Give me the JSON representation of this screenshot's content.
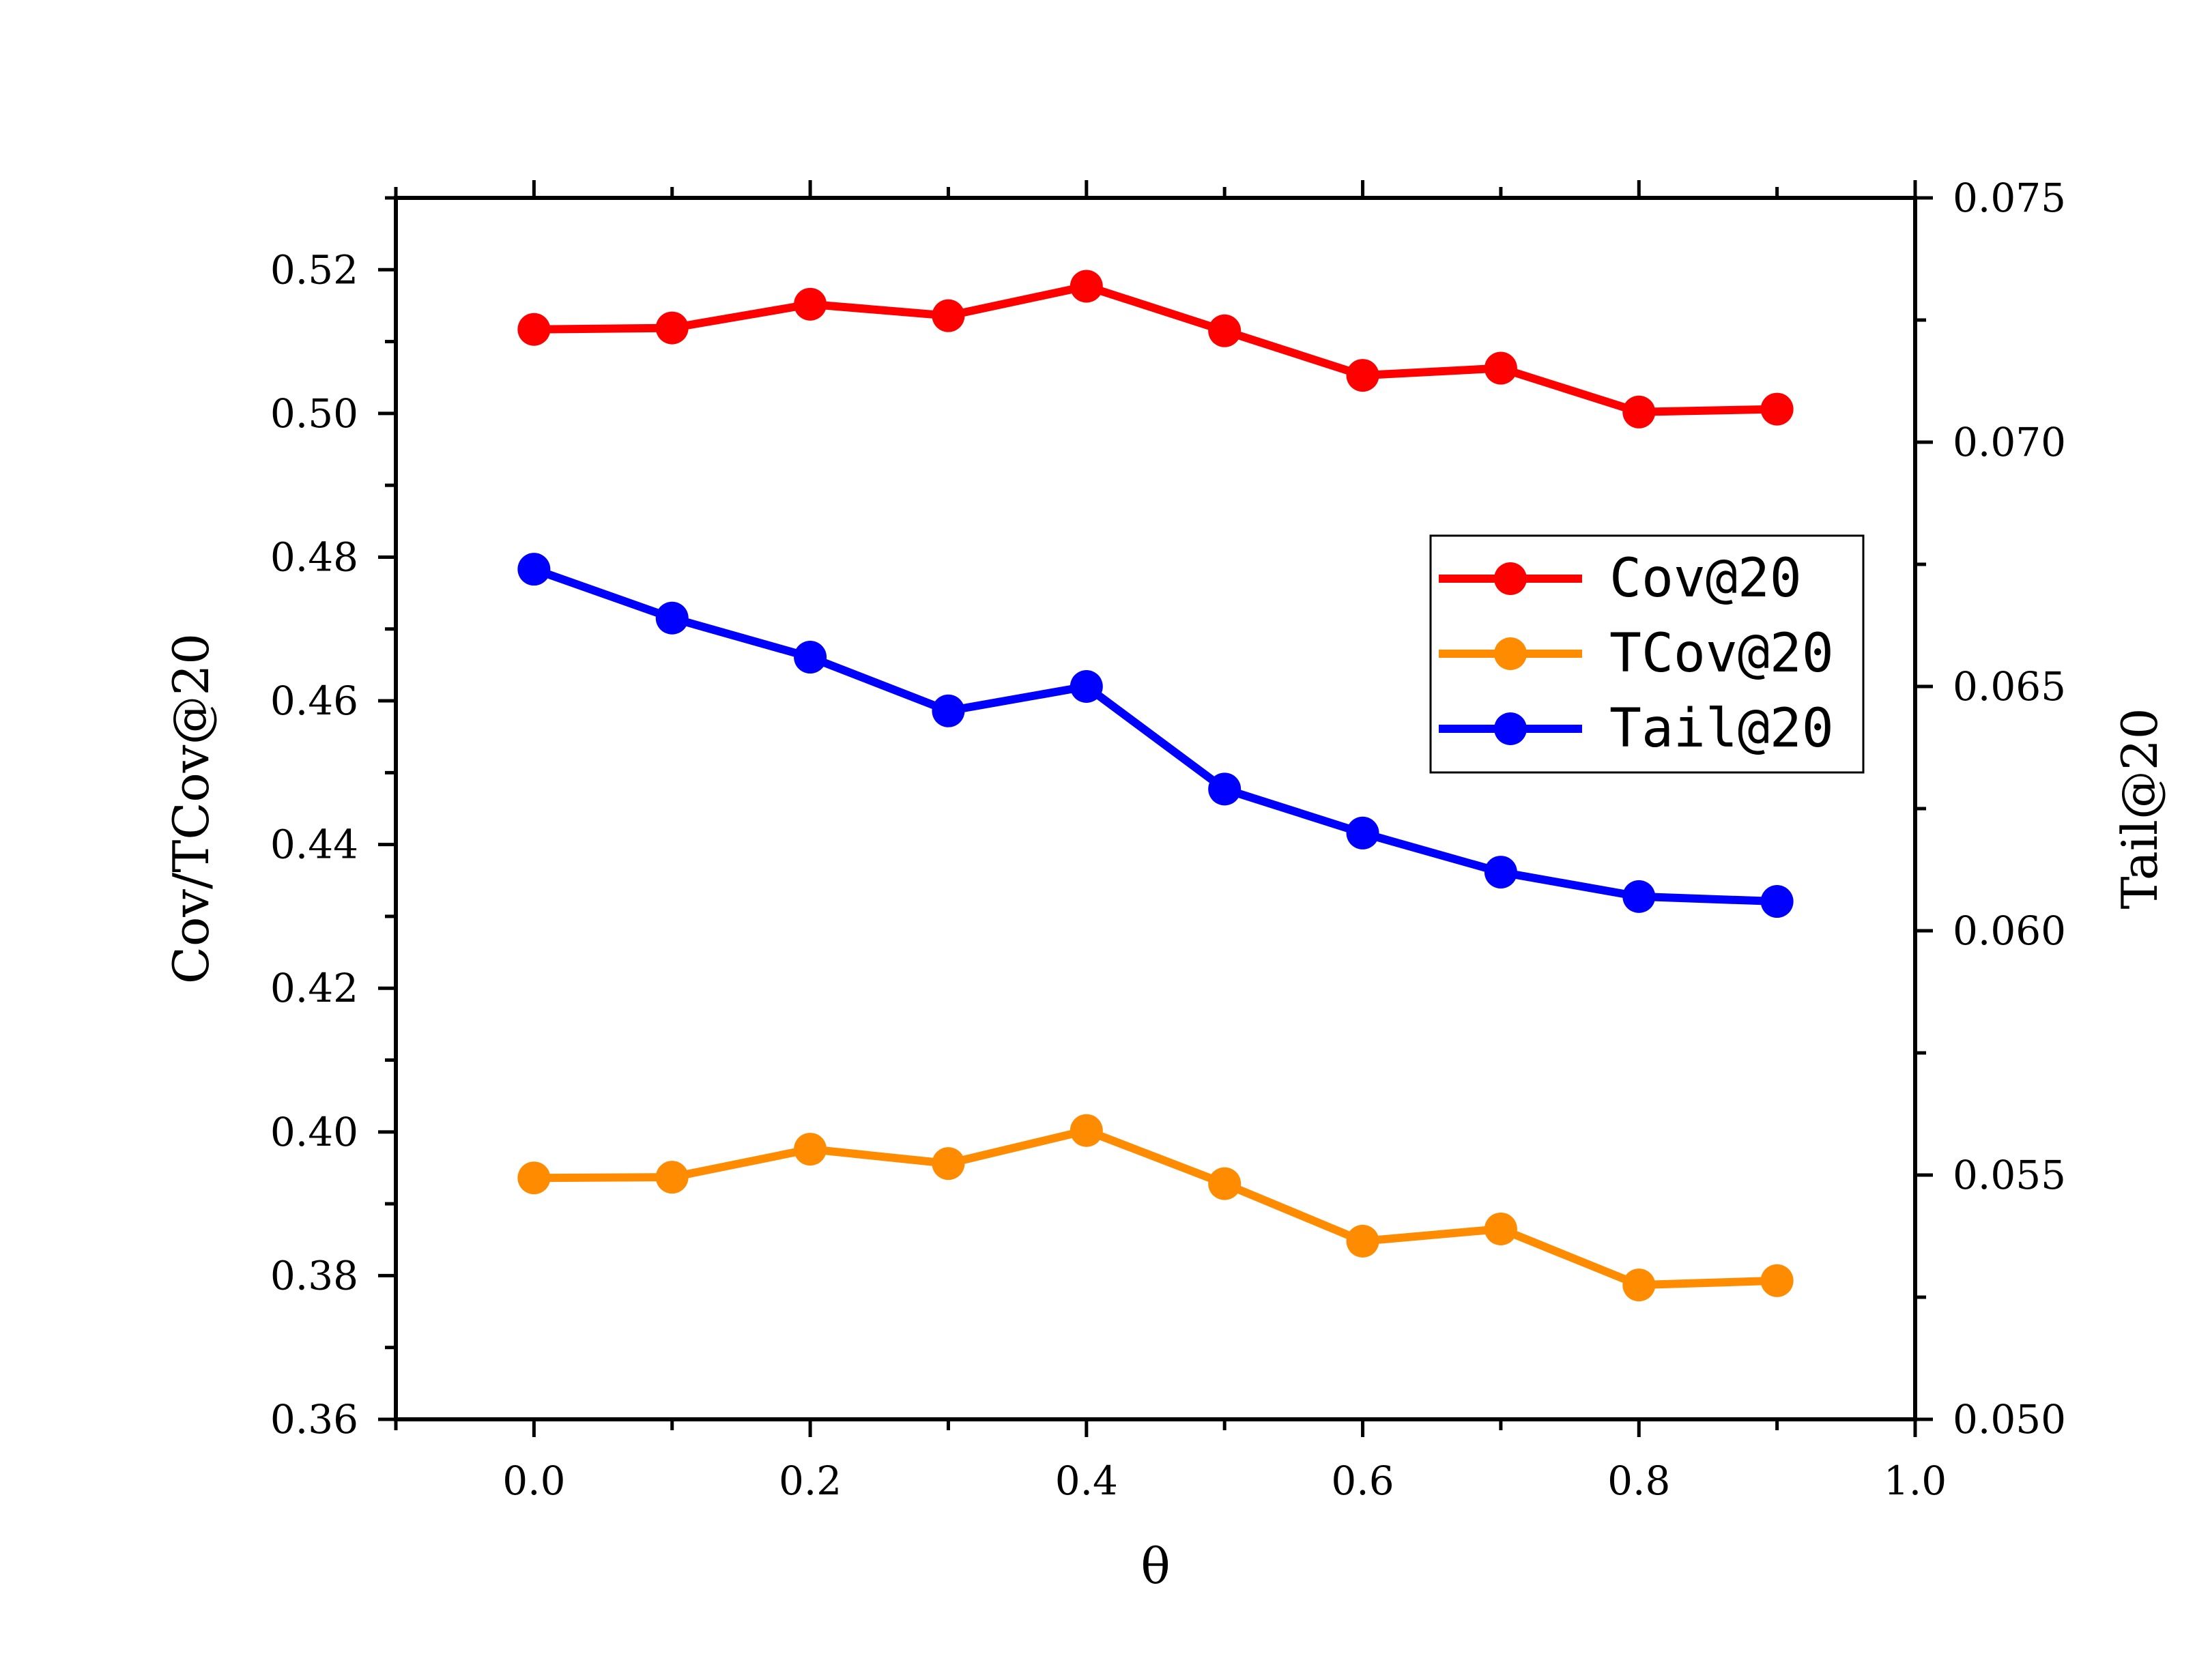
{
  "chart_data": {
    "type": "line",
    "title": "",
    "xlabel": "θ",
    "ylabel_left": "Cov/TCov@20",
    "ylabel_right": "Tail@20",
    "xlim": [
      -0.1,
      1.0
    ],
    "ylim_left": [
      0.36,
      0.53
    ],
    "ylim_right": [
      0.05,
      0.075
    ],
    "x_ticks": [
      "0.0",
      "0.2",
      "0.4",
      "0.6",
      "0.8",
      "1.0"
    ],
    "y_left_ticks": [
      "0.36",
      "0.38",
      "0.40",
      "0.42",
      "0.44",
      "0.46",
      "0.48",
      "0.50",
      "0.52"
    ],
    "y_right_ticks": [
      "0.050",
      "0.055",
      "0.060",
      "0.065",
      "0.070",
      "0.075"
    ],
    "x": [
      0.0,
      0.1,
      0.2,
      0.3,
      0.4,
      0.5,
      0.6,
      0.7,
      0.8,
      0.9
    ],
    "series": [
      {
        "name": "Cov@20",
        "axis": "left",
        "color": "#ff0000",
        "values": [
          0.5117,
          0.5119,
          0.5152,
          0.5136,
          0.5177,
          0.5115,
          0.5053,
          0.5063,
          0.5002,
          0.5006
        ]
      },
      {
        "name": "TCov@20",
        "axis": "left",
        "color": "#ff8c00",
        "values": [
          0.3936,
          0.3937,
          0.3976,
          0.3956,
          0.4002,
          0.3928,
          0.3848,
          0.3865,
          0.3787,
          0.3793
        ]
      },
      {
        "name": "Tail@20",
        "axis": "right",
        "color": "#0000ff",
        "values": [
          0.0674,
          0.0664,
          0.0656,
          0.0645,
          0.065,
          0.0629,
          0.062,
          0.0612,
          0.0607,
          0.0606
        ]
      }
    ],
    "legend_position": "center-right"
  }
}
